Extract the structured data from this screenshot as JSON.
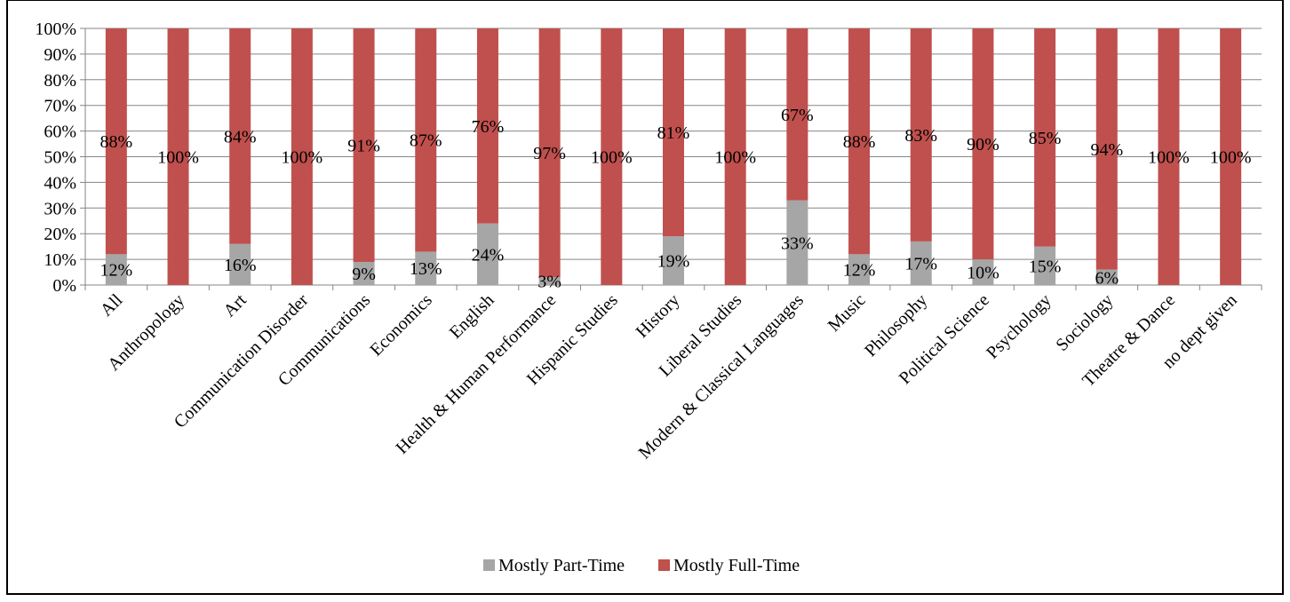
{
  "chart_data": {
    "type": "bar",
    "stacked": "percent",
    "title": "",
    "xlabel": "",
    "ylabel": "",
    "ylim": [
      0,
      100
    ],
    "y_ticks": [
      "0%",
      "10%",
      "20%",
      "30%",
      "40%",
      "50%",
      "60%",
      "70%",
      "80%",
      "90%",
      "100%"
    ],
    "grid": true,
    "legend_position": "bottom",
    "categories": [
      "All",
      "Anthropology",
      "Art",
      "Communication Disorder",
      "Communications",
      "Economics",
      "English",
      "Health & Human Performance",
      "Hispanic Studies",
      "History",
      "Liberal Studies",
      "Modern & Classical Languages",
      "Music",
      "Philosophy",
      "Political Science",
      "Psychology",
      "Sociology",
      "Theatre & Dance",
      "no dept given"
    ],
    "series": [
      {
        "name": "Mostly Part-Time",
        "color": "#a6a6a6",
        "values": [
          12,
          0,
          16,
          0,
          9,
          13,
          24,
          3,
          0,
          19,
          0,
          33,
          12,
          17,
          10,
          15,
          6,
          0,
          0
        ],
        "labels": [
          "12%",
          null,
          "16%",
          null,
          "9%",
          "13%",
          "24%",
          "3%",
          null,
          "19%",
          null,
          "33%",
          "12%",
          "17%",
          "10%",
          "15%",
          "6%",
          null,
          null
        ]
      },
      {
        "name": "Mostly Full-Time",
        "color": "#c0504d",
        "values": [
          88,
          100,
          84,
          100,
          91,
          87,
          76,
          97,
          100,
          81,
          100,
          67,
          88,
          83,
          90,
          85,
          94,
          100,
          100
        ],
        "labels": [
          "88%",
          "100%",
          "84%",
          "100%",
          "91%",
          "87%",
          "76%",
          "97%",
          "100%",
          "81%",
          "100%",
          "67%",
          "88%",
          "83%",
          "90%",
          "85%",
          "94%",
          "100%",
          "100%"
        ]
      }
    ]
  }
}
